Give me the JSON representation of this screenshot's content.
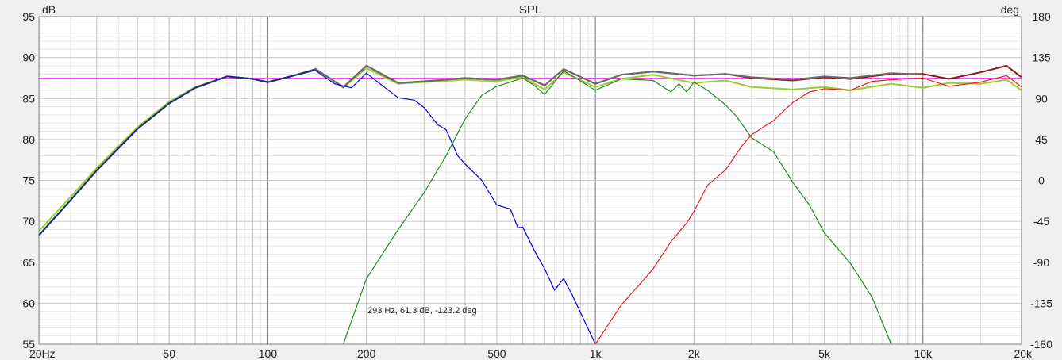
{
  "chart_data": {
    "type": "line",
    "title": "SPL",
    "ylabel": "dB",
    "y2label": "deg",
    "x_scale": "log",
    "xlim": [
      20,
      20000
    ],
    "ylim": [
      55,
      95
    ],
    "y2lim": [
      -180,
      180
    ],
    "grid": true,
    "x_ticks": [
      {
        "v": 20,
        "label": "20Hz"
      },
      {
        "v": 50,
        "label": "50"
      },
      {
        "v": 100,
        "label": "100"
      },
      {
        "v": 200,
        "label": "200"
      },
      {
        "v": 500,
        "label": "500"
      },
      {
        "v": 1000,
        "label": "1k"
      },
      {
        "v": 2000,
        "label": "2k"
      },
      {
        "v": 5000,
        "label": "5k"
      },
      {
        "v": 10000,
        "label": "10k"
      },
      {
        "v": 20000,
        "label": "20k"
      }
    ],
    "y_ticks": [
      95,
      90,
      85,
      80,
      75,
      70,
      65,
      60,
      55
    ],
    "y2_ticks": [
      180,
      135,
      90,
      45,
      0,
      -45,
      -90,
      -135,
      -180
    ],
    "reference_level_db": 87.5,
    "annotation": "293 Hz, 61.3 dB, -123.2 deg",
    "series": [
      {
        "color": "#9acd32",
        "role": "sum-phase",
        "x": [
          20,
          25,
          30,
          40,
          50,
          60,
          75,
          90,
          100,
          120,
          140,
          170,
          200,
          250,
          300,
          400,
          500,
          600,
          700,
          800,
          1000,
          1200,
          1500,
          2000,
          2500,
          3000,
          4000,
          5000,
          6000,
          8000,
          10000,
          12000,
          15000,
          18000,
          20000
        ],
        "y": [
          68.8,
          73.0,
          76.5,
          81.5,
          84.6,
          86.4,
          87.7,
          87.4,
          87.0,
          87.8,
          88.6,
          86.3,
          88.7,
          86.8,
          87.0,
          87.3,
          87.1,
          87.6,
          86.1,
          88.2,
          86.4,
          87.4,
          87.9,
          86.9,
          87.2,
          86.4,
          86.1,
          86.4,
          86.0,
          86.8,
          86.3,
          86.9,
          86.8,
          87.3,
          86.0
        ]
      },
      {
        "color": "#8b1a1a",
        "role": "sum",
        "x": [
          20,
          25,
          30,
          40,
          50,
          60,
          75,
          90,
          100,
          120,
          140,
          170,
          200,
          250,
          300,
          400,
          500,
          600,
          700,
          800,
          1000,
          1200,
          1500,
          2000,
          2500,
          3000,
          4000,
          5000,
          6000,
          8000,
          10000,
          12000,
          15000,
          18000,
          20000
        ],
        "y": [
          68.3,
          72.6,
          76.2,
          81.3,
          84.4,
          86.3,
          87.7,
          87.4,
          87.0,
          87.8,
          88.6,
          86.4,
          89.0,
          86.9,
          87.1,
          87.5,
          87.3,
          87.8,
          86.6,
          88.6,
          86.8,
          87.9,
          88.3,
          87.8,
          88.0,
          87.5,
          87.2,
          87.6,
          87.4,
          88.0,
          88.0,
          87.4,
          88.2,
          89.0,
          87.6
        ]
      },
      {
        "color": "#6a6a6a",
        "role": "sum-overlay",
        "x": [
          20,
          25,
          30,
          40,
          50,
          60,
          75,
          90,
          100,
          120,
          140,
          170,
          200,
          250,
          300,
          400,
          500,
          600,
          700,
          800,
          1000,
          1200,
          1500,
          2000,
          2500,
          3000,
          4000,
          5000,
          6000,
          8000,
          10000
        ],
        "y": [
          68.3,
          72.6,
          76.2,
          81.3,
          84.4,
          86.3,
          87.7,
          87.4,
          87.0,
          87.8,
          88.6,
          86.4,
          89.0,
          86.9,
          87.1,
          87.5,
          87.3,
          87.8,
          86.6,
          88.6,
          86.8,
          87.9,
          88.3,
          87.8,
          88.0,
          87.6,
          87.3,
          87.7,
          87.5,
          88.1,
          87.9
        ]
      },
      {
        "color": "#1c2a8c",
        "role": "woofer-low",
        "x": [
          20,
          25,
          30,
          40,
          50,
          60,
          75,
          90,
          100,
          120,
          140
        ],
        "y": [
          68.3,
          72.6,
          76.2,
          81.3,
          84.4,
          86.3,
          87.7,
          87.4,
          87.0,
          87.8,
          88.5
        ]
      },
      {
        "color": "#0000ee",
        "role": "woofer",
        "x": [
          140,
          160,
          180,
          200,
          220,
          250,
          280,
          300,
          330,
          350,
          380,
          400,
          450,
          500,
          550,
          580,
          600,
          650,
          700,
          750,
          800,
          850,
          1000
        ],
        "y": [
          88.4,
          86.8,
          86.3,
          88.1,
          86.8,
          85.1,
          84.8,
          83.9,
          81.8,
          81.2,
          78.0,
          77.0,
          75.0,
          72.0,
          71.5,
          69.2,
          69.3,
          66.5,
          64.2,
          61.6,
          63.0,
          61.0,
          55.0
        ]
      },
      {
        "color": "#228b22",
        "role": "midrange",
        "x": [
          170,
          200,
          250,
          300,
          350,
          400,
          450,
          500,
          550,
          600,
          650,
          700,
          800,
          1000,
          1200,
          1500,
          1700,
          1800,
          1900,
          2000,
          2200,
          2500,
          2700,
          3000,
          3500,
          4000,
          4500,
          5000,
          6000,
          7000,
          8000
        ],
        "y": [
          55.0,
          63.0,
          69.0,
          73.5,
          78.0,
          82.5,
          85.4,
          86.5,
          87.0,
          87.5,
          86.6,
          85.5,
          88.4,
          86.0,
          87.4,
          87.2,
          85.8,
          86.8,
          85.8,
          87.0,
          86.0,
          84.2,
          82.8,
          80.2,
          78.5,
          74.8,
          72.0,
          68.6,
          64.9,
          60.7,
          55.0
        ]
      },
      {
        "color": "#ee1c1c",
        "role": "tweeter",
        "x": [
          1000,
          1200,
          1400,
          1500,
          1700,
          1900,
          2000,
          2200,
          2500,
          2800,
          3000,
          3500,
          4000,
          4500,
          5000,
          6000,
          7000,
          8000,
          10000,
          12000,
          15000,
          18000,
          20000
        ],
        "y": [
          55.0,
          59.8,
          62.8,
          64.2,
          67.5,
          69.8,
          71.2,
          74.4,
          76.3,
          79.2,
          80.6,
          82.3,
          84.5,
          85.8,
          86.2,
          86.0,
          87.1,
          87.3,
          87.5,
          86.5,
          87.0,
          87.8,
          86.4
        ]
      }
    ]
  }
}
